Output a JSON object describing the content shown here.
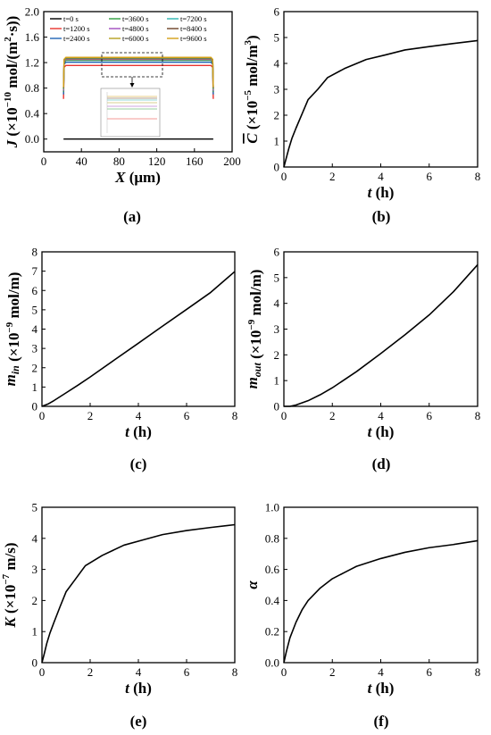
{
  "chart_data": [
    {
      "panel": "a",
      "type": "line",
      "xlabel": {
        "main": "X",
        "rest": " (μm)"
      },
      "ylabel": {
        "main": "J",
        "pre": " (×10",
        "exp": "−10",
        "post": " mol/(m",
        "exp2": "2",
        "post2": "·s))"
      },
      "xlim": [
        0,
        200
      ],
      "ylim": [
        -0.2,
        2.0
      ],
      "xticks": [
        0,
        40,
        80,
        120,
        160,
        200
      ],
      "yticks": [
        "0.0",
        "0.4",
        "0.8",
        "1.2",
        "1.6",
        "2.0"
      ],
      "ytick_values": [
        0.0,
        0.4,
        0.8,
        1.2,
        1.6,
        2.0
      ],
      "x_range": [
        21,
        180
      ],
      "series": [
        {
          "name": "t=0 s",
          "color": "#000000",
          "plateau": 0.0,
          "edge": 0.0
        },
        {
          "name": "t=1200 s",
          "color": "#e8322e",
          "plateau": 1.155,
          "edge": 0.63
        },
        {
          "name": "t=2400 s",
          "color": "#1f63b5",
          "plateau": 1.205,
          "edge": 0.7
        },
        {
          "name": "t=3600 s",
          "color": "#2e9e3e",
          "plateau": 1.235,
          "edge": 0.74
        },
        {
          "name": "t=4800 s",
          "color": "#a04bbf",
          "plateau": 1.25,
          "edge": 0.76
        },
        {
          "name": "t=6000 s",
          "color": "#b5a020",
          "plateau": 1.262,
          "edge": 0.78
        },
        {
          "name": "t=7200 s",
          "color": "#2bb5b0",
          "plateau": 1.27,
          "edge": 0.79
        },
        {
          "name": "t=8400 s",
          "color": "#6b4226",
          "plateau": 1.276,
          "edge": 0.8
        },
        {
          "name": "t=9600 s",
          "color": "#d4a017",
          "plateau": 1.282,
          "edge": 0.81
        }
      ],
      "subfig_label": "(a)"
    },
    {
      "panel": "b",
      "type": "line",
      "xlabel": {
        "main": "t",
        "rest": " (h)"
      },
      "ylabel": {
        "main": "C",
        "pre": " (×10",
        "exp": "−5",
        "post": " mol/m",
        "exp2": "3",
        "post2": ")"
      },
      "xlim": [
        0,
        8
      ],
      "ylim": [
        0,
        6
      ],
      "xticks": [
        0,
        2,
        4,
        6,
        8
      ],
      "yticks": [
        0,
        1,
        2,
        3,
        4,
        5,
        6
      ],
      "x": [
        0,
        0.1,
        0.2,
        0.33,
        0.5,
        0.75,
        1.0,
        1.4,
        1.8,
        2.5,
        3.4,
        4.2,
        5.0,
        6.0,
        7.0,
        8.0
      ],
      "y": [
        0,
        0.35,
        0.7,
        1.1,
        1.5,
        2.05,
        2.6,
        3.0,
        3.45,
        3.8,
        4.15,
        4.33,
        4.52,
        4.65,
        4.77,
        4.88
      ],
      "subfig_label": "(b)"
    },
    {
      "panel": "c",
      "type": "line",
      "xlabel": {
        "main": "t",
        "rest": " (h)"
      },
      "ylabel": {
        "main": "m",
        "sub": "in",
        "pre": " (×10",
        "exp": "−9",
        "post": " mol/m)"
      },
      "xlim": [
        0,
        8
      ],
      "ylim": [
        0,
        8
      ],
      "xticks": [
        0,
        2,
        4,
        6,
        8
      ],
      "yticks": [
        0,
        1,
        2,
        3,
        4,
        5,
        6,
        7,
        8
      ],
      "x": [
        0,
        0.25,
        0.5,
        1.0,
        1.5,
        2.0,
        3.0,
        4.0,
        5.0,
        6.0,
        7.0,
        8.0
      ],
      "y": [
        0,
        0.12,
        0.3,
        0.7,
        1.1,
        1.52,
        2.4,
        3.27,
        4.15,
        5.02,
        5.9,
        6.98
      ],
      "subfig_label": "(c)"
    },
    {
      "panel": "d",
      "type": "line",
      "xlabel": {
        "main": "t",
        "rest": " (h)"
      },
      "ylabel": {
        "main": "m",
        "sub": "out",
        "pre": " (×10",
        "exp": "−9",
        "post": " mol/m)"
      },
      "xlim": [
        0,
        8
      ],
      "ylim": [
        0,
        6
      ],
      "xticks": [
        0,
        2,
        4,
        6,
        8
      ],
      "yticks": [
        0,
        1,
        2,
        3,
        4,
        5,
        6
      ],
      "x": [
        0,
        0.25,
        0.5,
        1.0,
        1.5,
        2.0,
        3.0,
        4.0,
        5.0,
        6.0,
        7.0,
        8.0
      ],
      "y": [
        0,
        0.0,
        0.05,
        0.22,
        0.45,
        0.72,
        1.35,
        2.05,
        2.78,
        3.55,
        4.45,
        5.5
      ],
      "subfig_label": "(d)"
    },
    {
      "panel": "e",
      "type": "line",
      "xlabel": {
        "main": "t",
        "rest": " (h)"
      },
      "ylabel": {
        "main": "K",
        "pre": " (×10",
        "exp": "−7",
        "post": " m/s)"
      },
      "xlim": [
        0,
        8
      ],
      "ylim": [
        0,
        5
      ],
      "xticks": [
        0,
        2,
        4,
        6,
        8
      ],
      "yticks": [
        0,
        1,
        2,
        3,
        4,
        5
      ],
      "x": [
        0,
        0.1,
        0.2,
        0.33,
        0.5,
        0.75,
        1.0,
        1.4,
        1.8,
        2.5,
        3.4,
        4.2,
        5.0,
        6.0,
        7.0,
        8.0
      ],
      "y": [
        0,
        0.3,
        0.62,
        0.95,
        1.3,
        1.8,
        2.28,
        2.7,
        3.12,
        3.45,
        3.78,
        3.95,
        4.12,
        4.25,
        4.35,
        4.44
      ],
      "subfig_label": "(e)"
    },
    {
      "panel": "f",
      "type": "line",
      "xlabel": {
        "main": "t",
        "rest": " (h)"
      },
      "ylabel": {
        "main": "α"
      },
      "xlim": [
        0,
        8
      ],
      "ylim": [
        0,
        1.0
      ],
      "xticks": [
        0,
        2,
        4,
        6,
        8
      ],
      "yticks": [
        "0.0",
        "0.2",
        "0.4",
        "0.6",
        "0.8",
        "1.0"
      ],
      "ytick_values": [
        0.0,
        0.2,
        0.4,
        0.6,
        0.8,
        1.0
      ],
      "x": [
        0,
        0.1,
        0.25,
        0.5,
        0.75,
        1.0,
        1.5,
        2.0,
        2.5,
        3.0,
        4.0,
        5.0,
        6.0,
        7.0,
        8.0
      ],
      "y": [
        0,
        0.07,
        0.16,
        0.26,
        0.34,
        0.4,
        0.48,
        0.54,
        0.58,
        0.62,
        0.67,
        0.71,
        0.74,
        0.76,
        0.785
      ],
      "subfig_label": "(f)"
    }
  ]
}
